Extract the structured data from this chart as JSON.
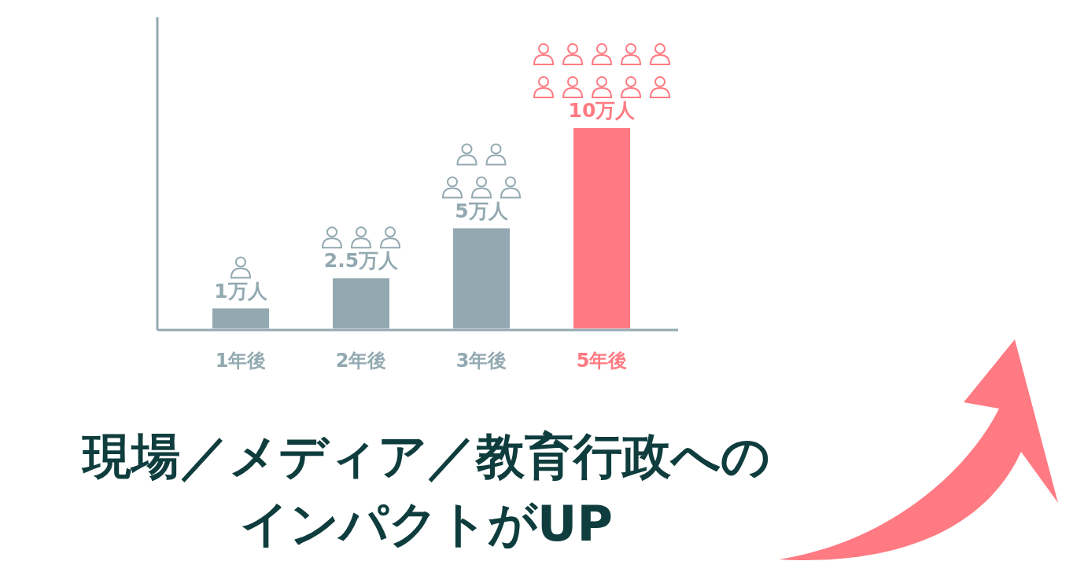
{
  "chart_data": {
    "type": "bar",
    "title": "現場／メディア／教育行政へのインパクトがUP",
    "categories": [
      "1年後",
      "2年後",
      "3年後",
      "5年後"
    ],
    "values": [
      1,
      2.5,
      5,
      10
    ],
    "value_labels": [
      "1万人",
      "2.5万人",
      "5万人",
      "10万人"
    ],
    "colors": [
      "#93a9b1",
      "#93a9b1",
      "#93a9b1",
      "#ff7a82"
    ]
  }
}
